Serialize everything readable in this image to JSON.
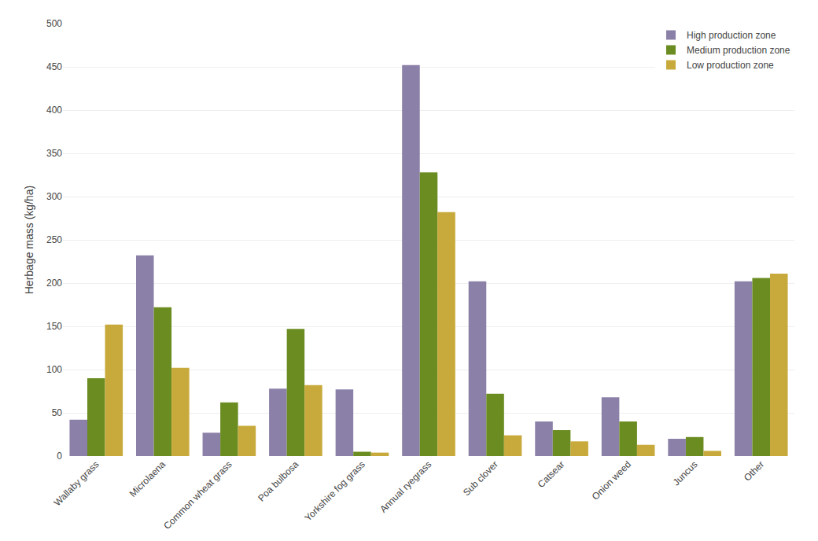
{
  "chart_data": {
    "type": "bar",
    "ylabel": "Herbage mass (kg/ha)",
    "categories": [
      "Wallaby grass",
      "Microlaena",
      "Common wheat grass",
      "Poa bulbosa",
      "Yorkshire fog grass",
      "Annual ryegrass",
      "Sub clover",
      "Catsear",
      "Onion weed",
      "Juncus",
      "Other"
    ],
    "series": [
      {
        "name": "High production zone",
        "color": "#8b80a8",
        "values": [
          42,
          232,
          27,
          78,
          77,
          452,
          202,
          40,
          68,
          20,
          202
        ]
      },
      {
        "name": "Medium production zone",
        "color": "#6b8c21",
        "values": [
          90,
          172,
          62,
          147,
          5,
          328,
          72,
          30,
          40,
          22,
          206
        ]
      },
      {
        "name": "Low production zone",
        "color": "#c8aa3c",
        "values": [
          152,
          102,
          35,
          82,
          4,
          282,
          24,
          17,
          13,
          6,
          211
        ]
      }
    ],
    "ylim": [
      0,
      500
    ],
    "yticks": [
      0,
      50,
      100,
      150,
      200,
      250,
      300,
      350,
      400,
      450,
      500
    ],
    "grid": true,
    "legend": "upper right"
  }
}
